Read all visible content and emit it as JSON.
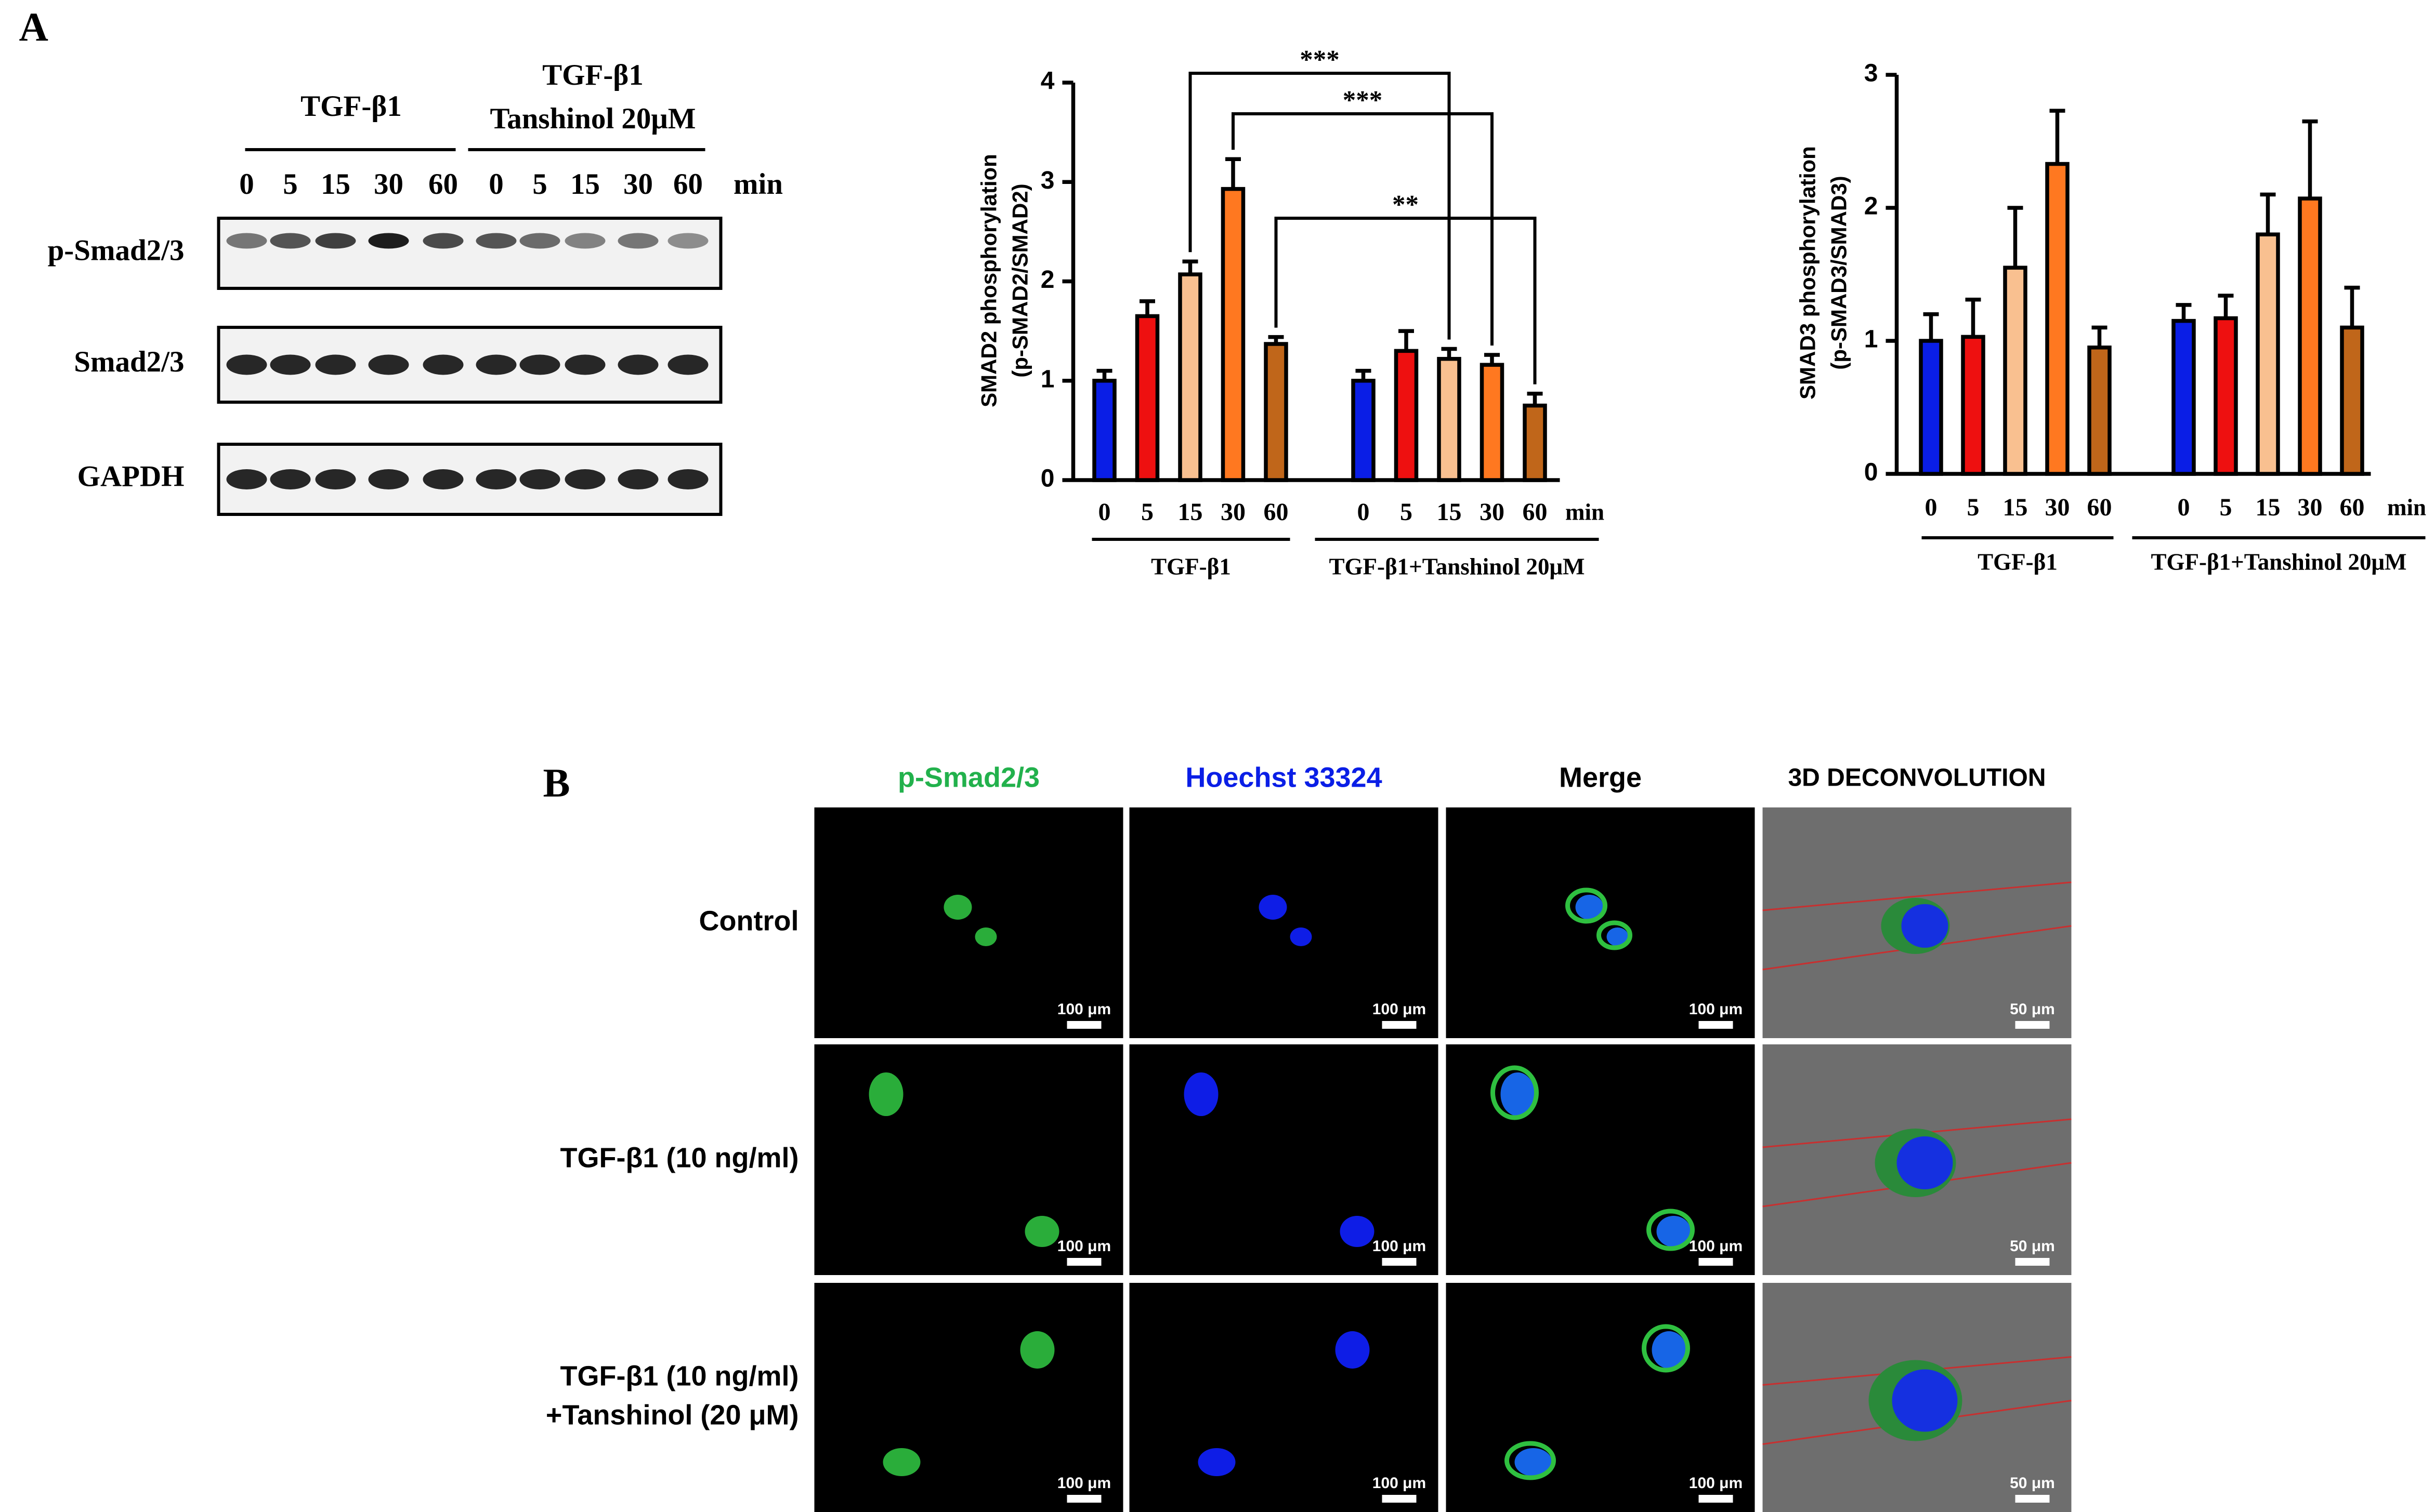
{
  "panel_labels": [
    "A",
    "B"
  ],
  "blot": {
    "group_labels": [
      [
        "TGF-β1"
      ],
      [
        "TGF-β1",
        "Tanshinol 20μM"
      ]
    ],
    "lanes": [
      "0",
      "5",
      "15",
      "30",
      "60",
      "0",
      "5",
      "15",
      "30",
      "60"
    ],
    "lane_unit": "min",
    "rows": [
      "p-Smad2/3",
      "Smad2/3",
      "GAPDH"
    ]
  },
  "chart_data": [
    {
      "type": "bar",
      "y_label": [
        "SMAD2 phosphorylation",
        "(p-SMAD2/SMAD2)"
      ],
      "categories": [
        "0",
        "5",
        "15",
        "30",
        "60",
        "0",
        "5",
        "15",
        "30",
        "60"
      ],
      "x_unit": "min",
      "group_labels": [
        "TGF-β1",
        "TGF-β1+Tanshinol 20μM"
      ],
      "values": [
        1.0,
        1.65,
        2.07,
        2.93,
        1.37,
        1.0,
        1.3,
        1.22,
        1.16,
        0.75
      ],
      "errors": [
        0.1,
        0.15,
        0.13,
        0.3,
        0.07,
        0.1,
        0.2,
        0.1,
        0.1,
        0.12
      ],
      "colors": [
        "#0a1ee6",
        "#ee1010",
        "#f9c090",
        "#ff7820",
        "#c0661a"
      ],
      "ylim": [
        0,
        4
      ],
      "yticks": [
        0,
        1,
        2,
        3,
        4
      ],
      "significance": [
        {
          "label": "***",
          "from": 2,
          "to": 7
        },
        {
          "label": "***",
          "from": 3,
          "to": 8
        },
        {
          "label": "**",
          "from": 4,
          "to": 9
        }
      ]
    },
    {
      "type": "bar",
      "y_label": [
        "SMAD3 phosphorylation",
        "(p-SMAD3/SMAD3)"
      ],
      "categories": [
        "0",
        "5",
        "15",
        "30",
        "60",
        "0",
        "5",
        "15",
        "30",
        "60"
      ],
      "x_unit": "min",
      "group_labels": [
        "TGF-β1",
        "TGF-β1+Tanshinol 20μM"
      ],
      "values": [
        1.0,
        1.03,
        1.55,
        2.33,
        0.95,
        1.15,
        1.17,
        1.8,
        2.07,
        1.1
      ],
      "errors": [
        0.2,
        0.28,
        0.45,
        0.4,
        0.15,
        0.12,
        0.17,
        0.3,
        0.58,
        0.3
      ],
      "colors": [
        "#0a1ee6",
        "#ee1010",
        "#f9c090",
        "#ff7820",
        "#c0661a"
      ],
      "ylim": [
        0,
        3
      ],
      "yticks": [
        0,
        1,
        2,
        3
      ]
    }
  ],
  "microscopy": {
    "columns": [
      "p-Smad2/3",
      "Hoechst 33324",
      "Merge",
      "3D DECONVOLUTION"
    ],
    "rows": [
      [
        "Control"
      ],
      [
        "TGF-β1 (10 ng/ml)"
      ],
      [
        "TGF-β1 (10 ng/ml)",
        "+Tanshinol (20 μM)"
      ]
    ],
    "scale_bars": [
      "100 μm",
      "100 μm",
      "100 μm",
      "50 μm"
    ]
  }
}
